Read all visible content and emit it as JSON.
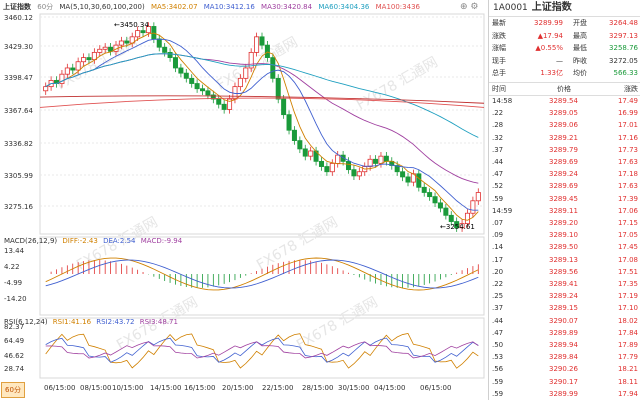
{
  "chart": {
    "symbol": "上证指数",
    "period": "60分",
    "ma_header": {
      "label": "MA(5,10,30,60,100,200)",
      "ma5": "MA5:3402.07",
      "ma10": "MA10:3412.16",
      "ma30": "MA30:3420.84",
      "ma60": "MA60:3404.36",
      "ma100": "MA100:3436"
    },
    "y_ticks": [
      "3460.12",
      "3429.30",
      "3398.47",
      "3367.64",
      "3336.82",
      "3305.99",
      "3275.16"
    ],
    "high_label": "3450.34",
    "low_label": "3254.61",
    "watermark": "FX678 汇通网",
    "macd_header": {
      "label": "MACD(26,12,9)",
      "diff": "DIFF:-2.43",
      "dea": "DEA:2.54",
      "macd": "MACD:-9.94"
    },
    "macd_ticks": [
      "13.44",
      "4.22",
      "-4.99",
      "-14.20"
    ],
    "rsi_header": {
      "label": "RSI(6,12,24)",
      "rsi1": "RSI1:41.16",
      "rsi2": "RSI2:43.72",
      "rsi3": "RSI3:48.71"
    },
    "rsi_ticks": [
      "82.37",
      "64.49",
      "46.62",
      "28.74"
    ],
    "x_labels": [
      "06/15:00",
      "08/15:00",
      "10/15:00",
      "14/15:00",
      "16/15:00",
      "20/15:00",
      "22/15:00",
      "28/15:00",
      "30/15:00",
      "04/15:00",
      "06/15:00"
    ],
    "colors": {
      "up": "#e03030",
      "down": "#1a9a3a",
      "ma5": "#d08000",
      "ma10": "#4060d0",
      "ma30": "#a040a0",
      "ma60": "#20a0c0",
      "ma100": "#e05050",
      "ma200": "#c03030"
    }
  },
  "quote": {
    "code": "1A0001",
    "name": "上证指数",
    "rows": [
      {
        "l": "最新",
        "v": "3289.99",
        "l2": "开盘",
        "v2": "3264.48",
        "c": "#e03030",
        "c2": "#e03030"
      },
      {
        "l": "涨跌",
        "v": "▲17.94",
        "l2": "最高",
        "v2": "3297.13",
        "c": "#e03030",
        "c2": "#e03030"
      },
      {
        "l": "涨幅",
        "v": "▲0.55%",
        "l2": "最低",
        "v2": "3258.76",
        "c": "#e03030",
        "c2": "#1a9a3a"
      },
      {
        "l": "现手",
        "v": "—",
        "l2": "昨收",
        "v2": "3272.05",
        "c": "#333",
        "c2": "#333"
      },
      {
        "l": "总手",
        "v": "1.33亿",
        "l2": "均价",
        "v2": "566.33",
        "c": "#e03030",
        "c2": "#1a9a3a"
      }
    ]
  },
  "ticks": {
    "headers": [
      "时间",
      "价格",
      "涨跌"
    ],
    "rows": [
      [
        "14:58",
        "3289.54",
        "17.49"
      ],
      [
        ".22",
        "3289.05",
        "16.99"
      ],
      [
        ".28",
        "3289.06",
        "17.01"
      ],
      [
        ".32",
        "3289.21",
        "17.16"
      ],
      [
        ".37",
        "3289.79",
        "17.73"
      ],
      [
        ".44",
        "3289.69",
        "17.63"
      ],
      [
        ".47",
        "3289.24",
        "17.18"
      ],
      [
        ".52",
        "3289.69",
        "17.63"
      ],
      [
        ".59",
        "3289.45",
        "17.39"
      ],
      [
        "14:59",
        "3289.11",
        "17.06"
      ],
      [
        ".07",
        "3289.20",
        "17.15"
      ],
      [
        ".09",
        "3289.10",
        "17.05"
      ],
      [
        ".14",
        "3289.50",
        "17.45"
      ],
      [
        ".17",
        "3289.13",
        "17.08"
      ],
      [
        ".20",
        "3289.56",
        "17.51"
      ],
      [
        ".22",
        "3289.41",
        "17.35"
      ],
      [
        ".25",
        "3289.24",
        "17.19"
      ],
      [
        ".37",
        "3289.15",
        "17.10"
      ],
      [
        ".44",
        "3290.07",
        "18.02"
      ],
      [
        ".47",
        "3289.89",
        "17.84"
      ],
      [
        ".50",
        "3289.94",
        "17.89"
      ],
      [
        ".53",
        "3289.84",
        "17.79"
      ],
      [
        ".56",
        "3290.26",
        "18.21"
      ],
      [
        ".59",
        "3290.17",
        "18.11"
      ],
      [
        ".59",
        "3289.99",
        "17.94"
      ]
    ]
  }
}
